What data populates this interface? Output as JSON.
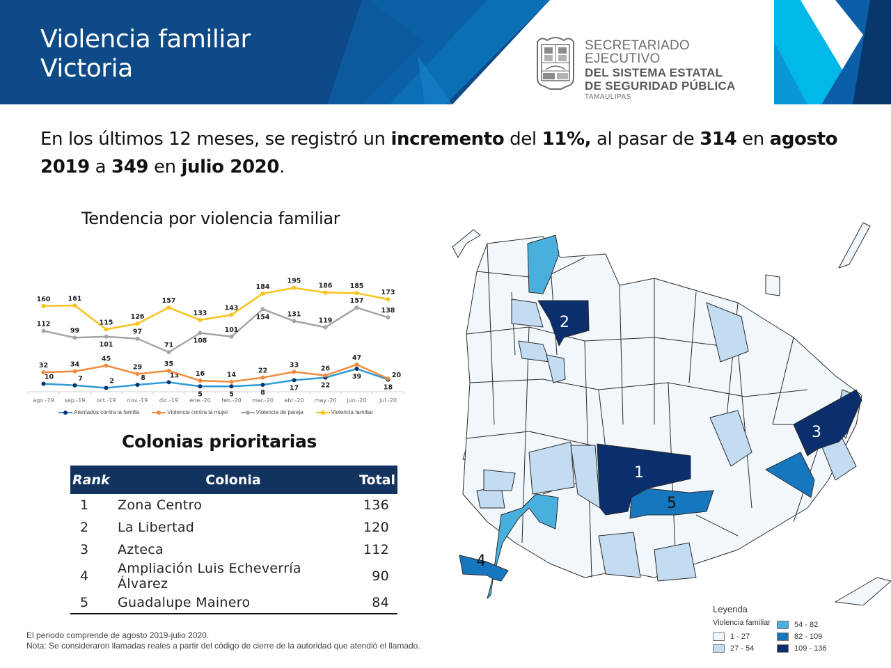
{
  "header": {
    "title_line1": "Violencia familiar",
    "title_line2": "Victoria",
    "logo": {
      "icon": "state-coat-of-arms-icon",
      "line1": "SECRETARIADO EJECUTIVO",
      "line2": "DEL SISTEMA ESTATAL",
      "line3": "DE SEGURIDAD PÚBLICA",
      "line4": "TAMAULIPAS"
    },
    "colors": {
      "navy": "#0d4a87",
      "blue": "#0a6fb5",
      "cyan": "#00b9e8",
      "dark": "#08386b"
    }
  },
  "summary": {
    "t1": "En los últimos 12 meses, se registró un ",
    "b1": "incremento",
    "t2": " del ",
    "b2": "11%,",
    "t3": " al pasar de ",
    "b3": "314",
    "t4": " en ",
    "b4": "agosto 2019",
    "t5": " a ",
    "b5": "349",
    "t6": " en ",
    "b6": "julio 2020",
    "t7": "."
  },
  "chart_data": {
    "type": "line",
    "title": "Tendencia por violencia familiar",
    "xlabel": "",
    "ylabel": "",
    "categories": [
      "ago.-19",
      "sep.-19",
      "oct.-19",
      "nov.-19",
      "dic.-19",
      "ene.-20",
      "feb.-20",
      "mar.-20",
      "abr.-20",
      "may.-20",
      "jun.-20",
      "jul.-20"
    ],
    "ylim": [
      0,
      200
    ],
    "grid": false,
    "legend_position": "bottom",
    "series": [
      {
        "name": "Atentados contra la familia",
        "color": "#2e9bd6",
        "marker_color": "#0d2f6b",
        "values": [
          10,
          7,
          2,
          8,
          13,
          5,
          5,
          8,
          17,
          22,
          39,
          18
        ]
      },
      {
        "name": "Violencia contra la mujer",
        "color": "#f08a3c",
        "marker_color": "#f08a3c",
        "values": [
          32,
          34,
          45,
          29,
          35,
          16,
          14,
          22,
          33,
          26,
          47,
          20
        ]
      },
      {
        "name": "Violencia de pareja",
        "color": "#a5a5a5",
        "marker_color": "#a5a5a5",
        "values": [
          112,
          99,
          101,
          97,
          71,
          108,
          101,
          154,
          131,
          119,
          157,
          138
        ]
      },
      {
        "name": "Violencia familiar",
        "color": "#f7c31a",
        "marker_color": "#f7c31a",
        "values": [
          160,
          161,
          115,
          126,
          157,
          133,
          143,
          184,
          195,
          186,
          185,
          173
        ]
      }
    ]
  },
  "table": {
    "title": "Colonias prioritarias",
    "headers": {
      "rank": "Rank",
      "colonia": "Colonia",
      "total": "Total"
    },
    "rows": [
      {
        "rank": "1",
        "colonia": "Zona Centro",
        "total": "136"
      },
      {
        "rank": "2",
        "colonia": "La Libertad",
        "total": "120"
      },
      {
        "rank": "3",
        "colonia": "Azteca",
        "total": "112"
      },
      {
        "rank": "4",
        "colonia": "Ampliación Luis Echeverría Álvarez",
        "total": "90"
      },
      {
        "rank": "5",
        "colonia": "Guadalupe Mainero",
        "total": "84"
      }
    ]
  },
  "notes": {
    "line1": "El periodo comprende de agosto 2019-julio 2020.",
    "line2": "Nota: Se consideraron llamadas reales a partir del código de cierre de la autoridad que atendió el llamado."
  },
  "map": {
    "labels": [
      "1",
      "2",
      "3",
      "4",
      "5"
    ],
    "legend": {
      "title": "Leyenda",
      "subtitle": "Violencia familiar",
      "classes": [
        {
          "label": "1 - 27",
          "color": "#f2f7fc"
        },
        {
          "label": "27 - 54",
          "color": "#c3dcf1"
        },
        {
          "label": "54 - 82",
          "color": "#49afdc"
        },
        {
          "label": "82 - 109",
          "color": "#1677be"
        },
        {
          "label": "109 - 136",
          "color": "#0a2f6c"
        }
      ]
    }
  }
}
